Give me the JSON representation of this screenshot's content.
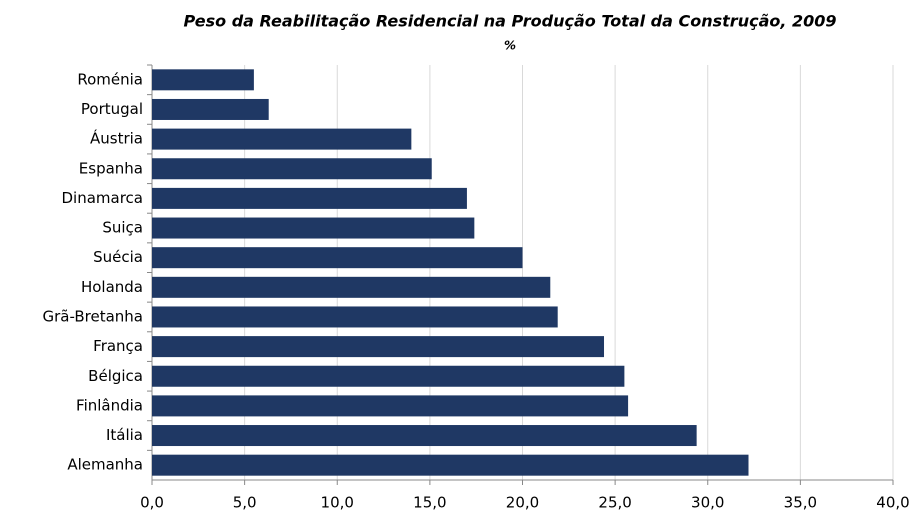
{
  "chart_data": {
    "type": "barh",
    "title": "Peso da Reabilitação Residencial na Produção Total da Construção, 2009",
    "subtitle": "%",
    "categories": [
      "Roménia",
      "Portugal",
      "Áustria",
      "Espanha",
      "Dinamarca",
      "Suiça",
      "Suécia",
      "Holanda",
      "Grã-Bretanha",
      "França",
      "Bélgica",
      "Finlândia",
      "Itália",
      "Alemanha"
    ],
    "values": [
      5.5,
      6.3,
      14.0,
      15.1,
      17.0,
      17.4,
      20.0,
      21.5,
      21.9,
      24.4,
      25.5,
      25.7,
      29.4,
      32.2
    ],
    "color": "#1f3864",
    "xlim": [
      0,
      40
    ],
    "xticks": [
      {
        "value": 0,
        "label": "0,0"
      },
      {
        "value": 5,
        "label": "5,0"
      },
      {
        "value": 10,
        "label": "10,0"
      },
      {
        "value": 15,
        "label": "15,0"
      },
      {
        "value": 20,
        "label": "20,0"
      },
      {
        "value": 25,
        "label": "25,0"
      },
      {
        "value": 30,
        "label": "30,0"
      },
      {
        "value": 35,
        "label": "35,0"
      },
      {
        "value": 40,
        "label": "40,0"
      }
    ],
    "grid": true
  }
}
